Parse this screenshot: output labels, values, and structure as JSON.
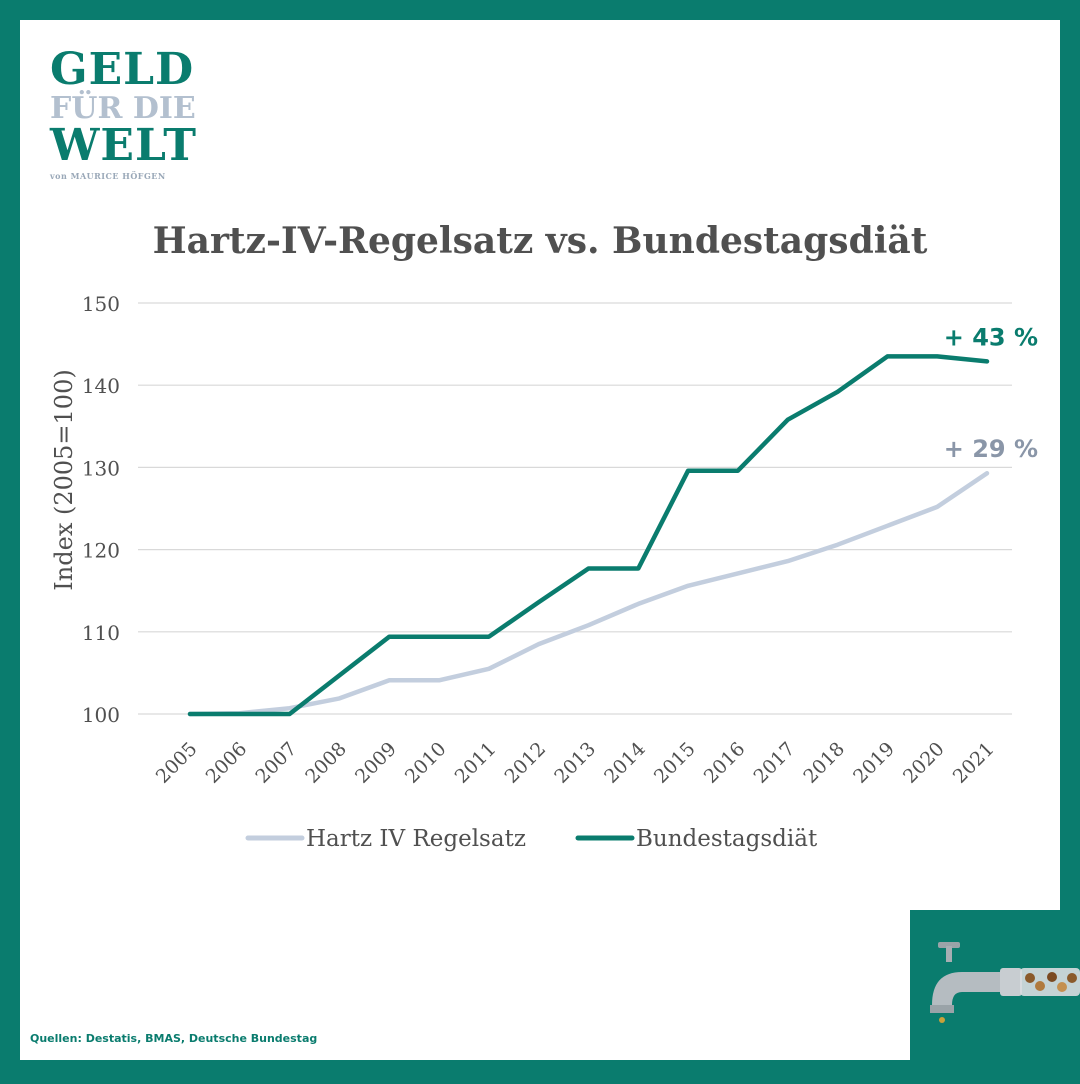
{
  "logo": {
    "line1": "GELD",
    "line2": "FÜR DIE",
    "line3": "WELT",
    "line4": "von MAURICE HÖFGEN"
  },
  "sources": "Quellen: Destatis, BMAS, Deutsche Bundestag",
  "colors": {
    "frame": "#0a7c6e",
    "hartz": "#c3cede",
    "diaet": "#0a7c6e",
    "hartz_label": "#8a96a8",
    "title": "#505050"
  },
  "chart_data": {
    "type": "line",
    "title": "Hartz-IV-Regelsatz vs. Bundestagsdiät",
    "ylabel": "Index (2005=100)",
    "xlabel": "",
    "ylim": [
      100,
      150
    ],
    "yticks": [
      100,
      110,
      120,
      130,
      140,
      150
    ],
    "grid": true,
    "legend_position": "bottom",
    "x": [
      "2005",
      "2006",
      "2007",
      "2008",
      "2009",
      "2010",
      "2011",
      "2012",
      "2013",
      "2014",
      "2015",
      "2016",
      "2017",
      "2018",
      "2019",
      "2020",
      "2021"
    ],
    "series": [
      {
        "name": "Hartz IV Regelsatz",
        "color": "#c3cede",
        "values": [
          100,
          100.1,
          100.7,
          101.9,
          104.1,
          104.1,
          105.5,
          108.5,
          110.8,
          113.4,
          115.6,
          117.1,
          118.6,
          120.6,
          122.9,
          125.2,
          129.3
        ],
        "end_label": "+ 29 %"
      },
      {
        "name": "Bundestagsdiät",
        "color": "#0a7c6e",
        "values": [
          100,
          100,
          100,
          104.7,
          109.4,
          109.4,
          109.4,
          113.6,
          117.7,
          117.7,
          129.6,
          129.6,
          135.8,
          139.2,
          143.5,
          143.5,
          142.9
        ],
        "end_label": "+ 43 %"
      }
    ]
  }
}
